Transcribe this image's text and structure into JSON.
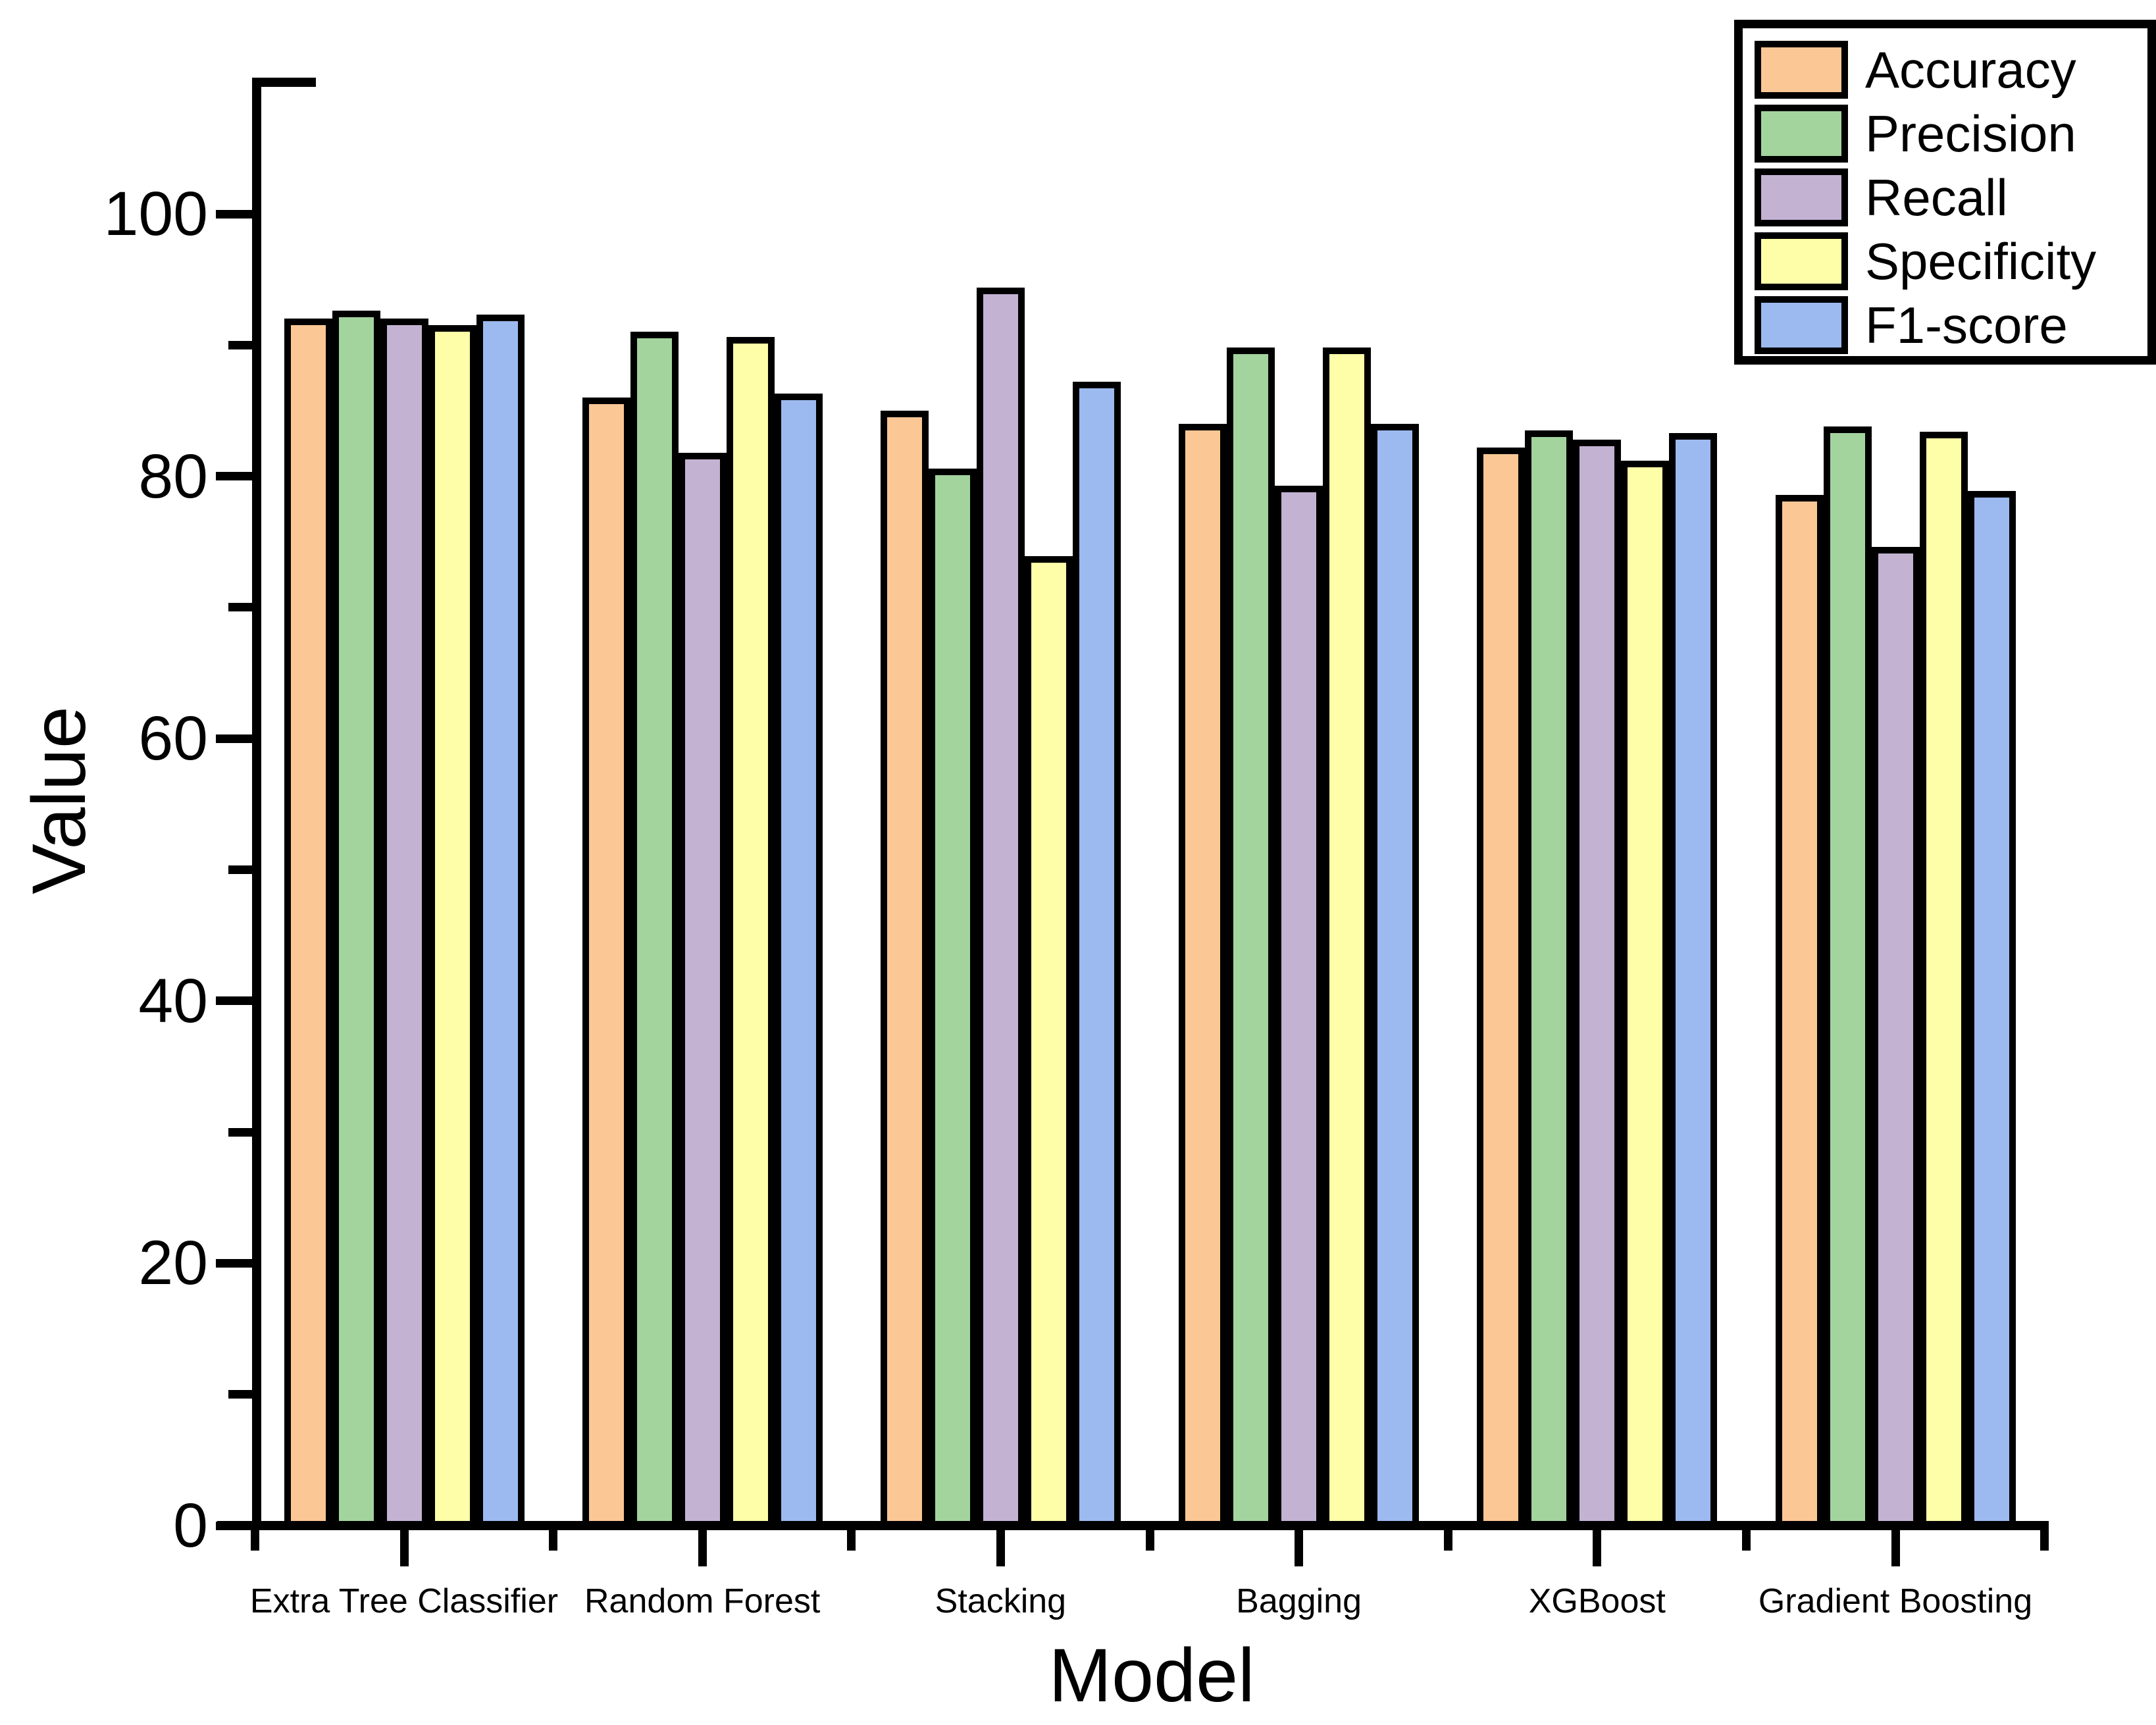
{
  "chart_data": {
    "type": "bar",
    "title": "",
    "xlabel": "Model",
    "ylabel": "Value",
    "ylim": [
      0,
      110
    ],
    "yticks_major": [
      0,
      20,
      40,
      60,
      80,
      100
    ],
    "yticks_minor": [
      10,
      30,
      50,
      70,
      90
    ],
    "grid": false,
    "legend_position": "top-right",
    "bar_outline_color": "#000000",
    "categories": [
      "Extra Tree Classifier",
      "Random Forest",
      "Stacking",
      "Bagging",
      "XGBoost",
      "Gradient Boosting"
    ],
    "series": [
      {
        "name": "Accuracy",
        "color": "#FBC795",
        "values": [
          92.0,
          86.0,
          85.0,
          84.0,
          82.2,
          78.6
        ]
      },
      {
        "name": "Precision",
        "color": "#A3D49E",
        "values": [
          92.6,
          91.0,
          80.6,
          89.8,
          83.5,
          83.8
        ]
      },
      {
        "name": "Recall",
        "color": "#C4B2D3",
        "values": [
          92.0,
          81.8,
          94.4,
          79.3,
          82.8,
          74.6
        ]
      },
      {
        "name": "Specificity",
        "color": "#FEFDA8",
        "values": [
          91.5,
          90.6,
          73.9,
          89.8,
          81.2,
          83.4
        ]
      },
      {
        "name": "F1-score",
        "color": "#9CBAEF",
        "values": [
          92.3,
          86.3,
          87.2,
          84.0,
          83.3,
          78.9
        ]
      }
    ]
  }
}
